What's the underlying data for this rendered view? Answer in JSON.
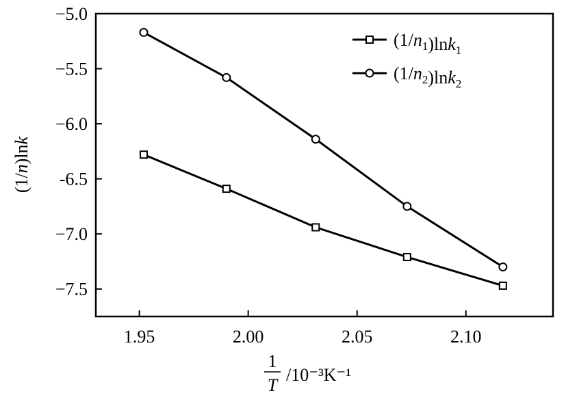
{
  "chart_data": {
    "type": "line",
    "x": [
      1.952,
      1.99,
      2.031,
      2.073,
      2.117
    ],
    "series": [
      {
        "name_main": "(1/n",
        "name_sub": "1",
        "name_rest": ")lnk",
        "name_sub2": "1",
        "marker": "square",
        "values": [
          -6.28,
          -6.59,
          -6.94,
          -7.21,
          -7.47
        ]
      },
      {
        "name_main": "(1/n",
        "name_sub": "2",
        "name_rest": ")lnk",
        "name_sub2": "2",
        "marker": "circle",
        "values": [
          -5.17,
          -5.58,
          -6.14,
          -6.75,
          -7.3
        ]
      }
    ],
    "xlim": [
      1.93,
      2.14
    ],
    "ylim": [
      -7.75,
      -5.0
    ],
    "xticks": [
      "1.95",
      "2.00",
      "2.05",
      "2.10"
    ],
    "xtick_values": [
      1.95,
      2.0,
      2.05,
      2.1
    ],
    "yticks": [
      "−5.0",
      "−5.5",
      "−6.0",
      "-6.5",
      "−7.0",
      "−7.5"
    ],
    "ytick_values": [
      -5.0,
      -5.5,
      -6.0,
      -6.5,
      -7.0,
      -7.5
    ],
    "ylabel": "(1/n)lnk",
    "xlabel_num": "1",
    "xlabel_den": "T",
    "xlabel_unit": "/10⁻³K⁻¹",
    "grid": false,
    "legend_position": "top-right",
    "line_color": "#000000"
  }
}
